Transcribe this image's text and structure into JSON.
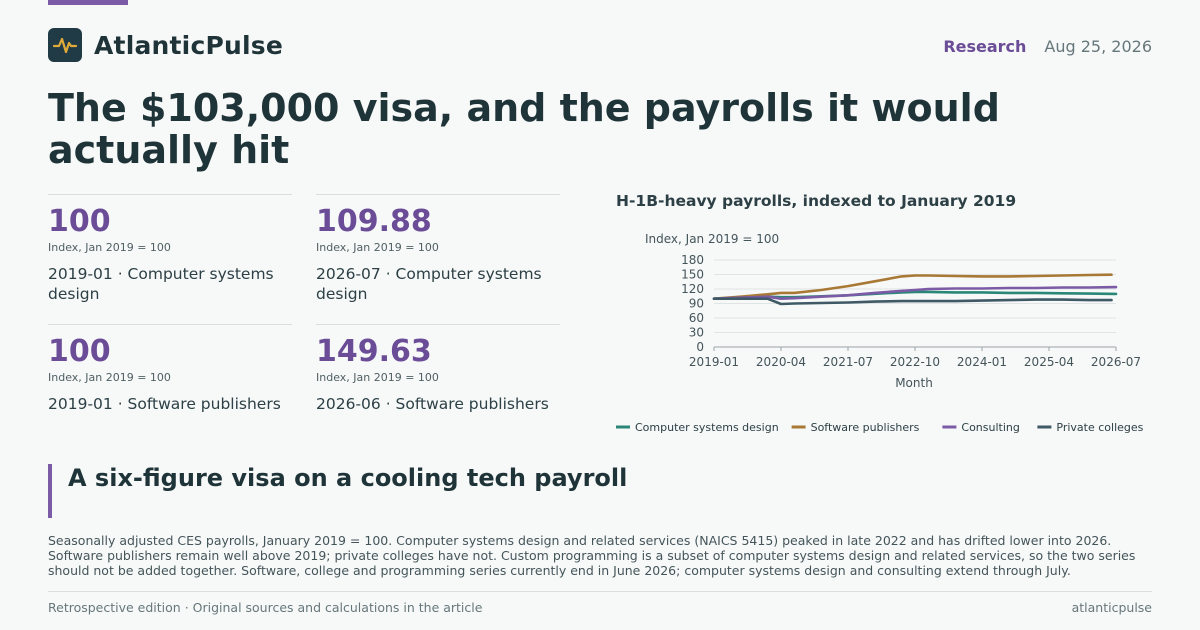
{
  "brand": {
    "name": "AtlanticPulse",
    "logo_icon": "pulse-icon",
    "accent": "#7b5ba6"
  },
  "header": {
    "section": "Research",
    "date": "Aug 25, 2026"
  },
  "headline": "The $103,000 visa, and the payrolls it would actually hit",
  "stats": [
    {
      "value": "100",
      "unit": "Index, Jan 2019 = 100",
      "label": "2019-01 · Computer systems design"
    },
    {
      "value": "109.88",
      "unit": "Index, Jan 2019 = 100",
      "label": "2026-07 · Computer systems design"
    },
    {
      "value": "100",
      "unit": "Index, Jan 2019 = 100",
      "label": "2019-01 · Software publishers"
    },
    {
      "value": "149.63",
      "unit": "Index, Jan 2019 = 100",
      "label": "2026-06 · Software publishers"
    }
  ],
  "chart_data": {
    "type": "line",
    "title": "H-1B-heavy payrolls, indexed to January 2019",
    "ylabel": "Index, Jan 2019 = 100",
    "xlabel": "Month",
    "ylim": [
      0,
      180
    ],
    "yticks": [
      0,
      30,
      60,
      90,
      120,
      150,
      180
    ],
    "xticks": [
      "2019-01",
      "2020-04",
      "2021-07",
      "2022-10",
      "2024-01",
      "2025-04",
      "2026-07"
    ],
    "grid": true,
    "legend_position": "bottom",
    "series": [
      {
        "name": "Computer systems design",
        "color": "#2a8778",
        "x": [
          "2019-01",
          "2019-07",
          "2020-01",
          "2020-04",
          "2020-07",
          "2021-01",
          "2021-07",
          "2022-01",
          "2022-07",
          "2022-10",
          "2023-01",
          "2023-07",
          "2024-01",
          "2024-07",
          "2025-01",
          "2025-07",
          "2026-01",
          "2026-07"
        ],
        "y": [
          100,
          102,
          104,
          103,
          103,
          105,
          107,
          110,
          113,
          114,
          114,
          113,
          113,
          112,
          112,
          111,
          110.5,
          109.88
        ]
      },
      {
        "name": "Software publishers",
        "color": "#a87935",
        "x": [
          "2019-01",
          "2019-07",
          "2020-01",
          "2020-04",
          "2020-07",
          "2021-01",
          "2021-07",
          "2022-01",
          "2022-07",
          "2022-10",
          "2023-01",
          "2023-07",
          "2024-01",
          "2024-07",
          "2025-01",
          "2025-07",
          "2026-01",
          "2026-06"
        ],
        "y": [
          100,
          104,
          109,
          112,
          112,
          118,
          126,
          136,
          146,
          148,
          148,
          147,
          146,
          146,
          147,
          148,
          149,
          149.63
        ]
      },
      {
        "name": "Consulting",
        "color": "#7b5ba6",
        "x": [
          "2019-01",
          "2019-07",
          "2020-01",
          "2020-04",
          "2020-07",
          "2021-01",
          "2021-07",
          "2022-01",
          "2022-07",
          "2022-10",
          "2023-01",
          "2023-07",
          "2024-01",
          "2024-07",
          "2025-01",
          "2025-07",
          "2026-01",
          "2026-07"
        ],
        "y": [
          100,
          102,
          104,
          100,
          101,
          104,
          107,
          112,
          116,
          118,
          120,
          121,
          121,
          122,
          122,
          123,
          123,
          124
        ]
      },
      {
        "name": "Private colleges",
        "color": "#3f5a66",
        "x": [
          "2019-01",
          "2019-07",
          "2020-01",
          "2020-04",
          "2020-07",
          "2021-01",
          "2021-07",
          "2022-01",
          "2022-07",
          "2022-10",
          "2023-01",
          "2023-07",
          "2024-01",
          "2024-07",
          "2025-01",
          "2025-07",
          "2026-01",
          "2026-06"
        ],
        "y": [
          100,
          100,
          100,
          89,
          90,
          91,
          92,
          94,
          95,
          95,
          95,
          95,
          96,
          97,
          98,
          98,
          97,
          97
        ]
      }
    ]
  },
  "subheadline": "A six-figure visa on a cooling tech payroll",
  "body": "Seasonally adjusted CES payrolls, January 2019 = 100. Computer systems design and related services (NAICS 5415) peaked in late 2022 and has drifted lower into 2026. Software publishers remain well above 2019; private colleges have not. Custom programming is a subset of computer systems design and related services, so the two series should not be added together. Software, college and programming series currently end in June 2026; computer systems design and consulting extend through July.",
  "footer": {
    "left": "Retrospective edition · Original sources and calculations in the article",
    "right": "atlanticpulse"
  }
}
